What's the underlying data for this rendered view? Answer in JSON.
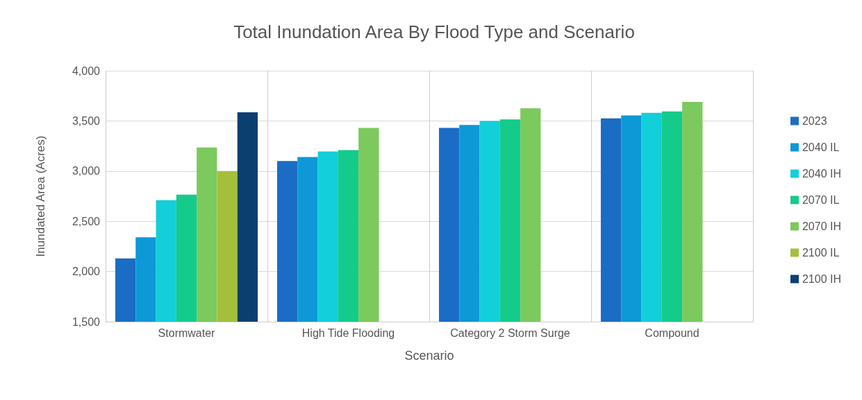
{
  "chart_data": {
    "type": "bar",
    "title": "Total Inundation Area By Flood Type and Scenario",
    "xlabel": "Scenario",
    "ylabel": "Inundated Area (Acres)",
    "categories": [
      "Stormwater",
      "High Tide Flooding",
      "Category 2 Storm Surge",
      "Compound"
    ],
    "series": [
      {
        "name": "2023",
        "color": "#1b6cc4",
        "values": [
          2130,
          3100,
          3430,
          3525
        ]
      },
      {
        "name": "2040 IL",
        "color": "#0d98d6",
        "values": [
          2340,
          3140,
          3460,
          3555
        ]
      },
      {
        "name": "2040 IH",
        "color": "#12cfd9",
        "values": [
          2710,
          3195,
          3500,
          3580
        ]
      },
      {
        "name": "2070 IL",
        "color": "#15cb8c",
        "values": [
          2765,
          3210,
          3515,
          3595
        ]
      },
      {
        "name": "2070 IH",
        "color": "#7cc95d",
        "values": [
          3235,
          3430,
          3625,
          3690
        ]
      },
      {
        "name": "2100 IL",
        "color": "#a5bf3c",
        "values": [
          3000,
          null,
          null,
          null
        ]
      },
      {
        "name": "2100 IH",
        "color": "#0b3f70",
        "values": [
          3585,
          null,
          null,
          null
        ]
      }
    ],
    "ylim": [
      1500,
      4000
    ],
    "yticks": [
      {
        "value": 1500,
        "label": "1,500"
      },
      {
        "value": 2000,
        "label": "2,000"
      },
      {
        "value": 2500,
        "label": "2,500"
      },
      {
        "value": 3000,
        "label": "3,000"
      },
      {
        "value": 3500,
        "label": "3,500"
      },
      {
        "value": 4000,
        "label": "4,000"
      }
    ],
    "grid": true,
    "legend": "right"
  }
}
